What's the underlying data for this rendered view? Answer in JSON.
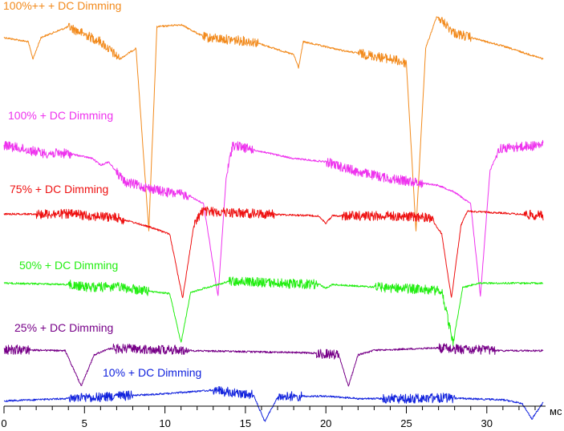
{
  "chart_data": {
    "type": "line",
    "title": "",
    "xlabel": "",
    "x_unit": "мс",
    "ylabel": "",
    "xlim": [
      0,
      33.5
    ],
    "x_ticks": [
      0,
      5,
      10,
      15,
      20,
      25,
      30
    ],
    "grid": false,
    "legend": "inline labels above each trace",
    "y_ticks_shown": false,
    "series": [
      {
        "name": "100%++ + DC Dimming",
        "color": "#f28a1c",
        "baseline": [
          [
            0,
            0.9
          ],
          [
            1.5,
            0.88
          ],
          [
            1.8,
            0.8
          ],
          [
            2.3,
            0.9
          ],
          [
            4,
            0.95
          ],
          [
            6,
            0.88
          ],
          [
            7.2,
            0.8
          ],
          [
            8.2,
            0.85
          ],
          [
            9.0,
            0.0
          ],
          [
            9.5,
            0.95
          ],
          [
            11,
            0.96
          ],
          [
            12.5,
            0.9
          ],
          [
            15.5,
            0.88
          ],
          [
            18.0,
            0.82
          ],
          [
            18.3,
            0.76
          ],
          [
            18.6,
            0.88
          ],
          [
            21,
            0.84
          ],
          [
            24,
            0.8
          ],
          [
            25.0,
            0.78
          ],
          [
            25.6,
            0.0
          ],
          [
            26.2,
            0.85
          ],
          [
            26.9,
            1.0
          ],
          [
            28,
            0.92
          ],
          [
            31,
            0.86
          ],
          [
            33.5,
            0.8
          ]
        ],
        "noise": [
          [
            4.0,
            7.2
          ],
          [
            12.3,
            15.8
          ],
          [
            22.0,
            25.0
          ],
          [
            27.0,
            29.0
          ]
        ]
      },
      {
        "name": "100% + DC Dimming",
        "color": "#ee33ee",
        "baseline": [
          [
            0,
            0.9
          ],
          [
            2.5,
            0.85
          ],
          [
            4,
            0.85
          ],
          [
            5.5,
            0.82
          ],
          [
            6,
            0.78
          ],
          [
            6.5,
            0.8
          ],
          [
            7.5,
            0.68
          ],
          [
            10,
            0.62
          ],
          [
            11.5,
            0.6
          ],
          [
            12.4,
            0.55
          ],
          [
            13.3,
            0.0
          ],
          [
            13.8,
            0.7
          ],
          [
            14.2,
            0.9
          ],
          [
            16,
            0.86
          ],
          [
            18,
            0.82
          ],
          [
            20,
            0.8
          ],
          [
            22,
            0.74
          ],
          [
            24,
            0.7
          ],
          [
            27,
            0.66
          ],
          [
            28,
            0.62
          ],
          [
            29.0,
            0.55
          ],
          [
            29.6,
            0.0
          ],
          [
            30.2,
            0.75
          ],
          [
            30.8,
            0.88
          ],
          [
            33.5,
            0.9
          ]
        ],
        "noise": [
          [
            0.0,
            4.2
          ],
          [
            7.0,
            11.5
          ],
          [
            13.9,
            15.5
          ],
          [
            20.0,
            26.0
          ],
          [
            30.6,
            33.5
          ]
        ]
      },
      {
        "name": "75% + DC Dimming",
        "color": "#ee1111",
        "baseline": [
          [
            0,
            0.92
          ],
          [
            2,
            0.92
          ],
          [
            4,
            0.92
          ],
          [
            7,
            0.88
          ],
          [
            9,
            0.78
          ],
          [
            10.3,
            0.7
          ],
          [
            11.1,
            0.0
          ],
          [
            11.8,
            0.8
          ],
          [
            12.3,
            0.95
          ],
          [
            16,
            0.92
          ],
          [
            19.5,
            0.9
          ],
          [
            20.0,
            0.82
          ],
          [
            20.4,
            0.9
          ],
          [
            24,
            0.9
          ],
          [
            26.5,
            0.88
          ],
          [
            27.2,
            0.7
          ],
          [
            27.8,
            0.0
          ],
          [
            28.4,
            0.8
          ],
          [
            28.8,
            0.95
          ],
          [
            31,
            0.93
          ],
          [
            33.5,
            0.9
          ]
        ],
        "noise": [
          [
            2.0,
            7.5
          ],
          [
            11.8,
            16.8
          ],
          [
            21.0,
            26.7
          ],
          [
            32.3,
            33.5
          ]
        ]
      },
      {
        "name": "50% + DC Dimming",
        "color": "#22ee11",
        "baseline": [
          [
            0,
            0.92
          ],
          [
            4,
            0.9
          ],
          [
            5,
            0.86
          ],
          [
            7,
            0.86
          ],
          [
            8.8,
            0.8
          ],
          [
            10.3,
            0.76
          ],
          [
            11.0,
            0.0
          ],
          [
            11.6,
            0.78
          ],
          [
            14,
            0.95
          ],
          [
            17,
            0.92
          ],
          [
            19.6,
            0.9
          ],
          [
            20.0,
            0.84
          ],
          [
            20.4,
            0.9
          ],
          [
            23,
            0.86
          ],
          [
            25,
            0.84
          ],
          [
            27.2,
            0.8
          ],
          [
            27.9,
            0.0
          ],
          [
            28.5,
            0.85
          ],
          [
            29.5,
            0.92
          ],
          [
            33.5,
            0.92
          ]
        ],
        "noise": [
          [
            4.0,
            9.0
          ],
          [
            14.0,
            19.5
          ],
          [
            23.0,
            28.0
          ]
        ]
      },
      {
        "name": "25% + DC Dimming",
        "color": "#770088",
        "baseline": [
          [
            0,
            0.88
          ],
          [
            3.8,
            0.85
          ],
          [
            4.8,
            0.0
          ],
          [
            5.6,
            0.75
          ],
          [
            6.5,
            0.9
          ],
          [
            10,
            0.88
          ],
          [
            12,
            0.85
          ],
          [
            16,
            0.82
          ],
          [
            19,
            0.8
          ],
          [
            20.8,
            0.75
          ],
          [
            21.4,
            0.0
          ],
          [
            22.0,
            0.75
          ],
          [
            23,
            0.86
          ],
          [
            27,
            0.92
          ],
          [
            28.5,
            0.88
          ],
          [
            31,
            0.85
          ],
          [
            33.5,
            0.85
          ]
        ],
        "noise": [
          [
            0.0,
            1.6
          ],
          [
            6.8,
            11.5
          ],
          [
            19.4,
            20.8
          ],
          [
            27.0,
            30.5
          ]
        ]
      },
      {
        "name": "10% + DC Dimming",
        "color": "#1122dd",
        "baseline": [
          [
            0,
            0.15
          ],
          [
            4,
            0.25
          ],
          [
            7,
            0.35
          ],
          [
            10,
            0.45
          ],
          [
            13,
            0.6
          ],
          [
            15.5,
            0.4
          ],
          [
            16.2,
            -0.7
          ],
          [
            17.0,
            0.3
          ],
          [
            18,
            0.35
          ],
          [
            20,
            0.35
          ],
          [
            22,
            0.25
          ],
          [
            25,
            0.25
          ],
          [
            27,
            0.28
          ],
          [
            31,
            0.2
          ],
          [
            32.2,
            0.05
          ],
          [
            32.8,
            -0.6
          ],
          [
            33.5,
            0.1
          ]
        ],
        "noise": [
          [
            4.0,
            8.0
          ],
          [
            13.0,
            15.5
          ],
          [
            17.0,
            18.5
          ],
          [
            23.5,
            28.0
          ]
        ]
      }
    ]
  }
}
